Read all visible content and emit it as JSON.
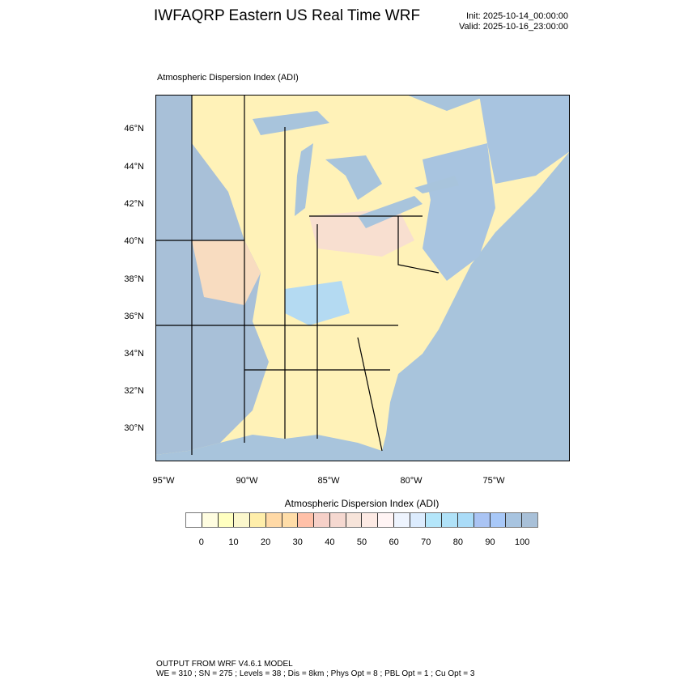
{
  "header": {
    "title": "IWFAQRP Eastern US Real Time WRF",
    "init": "Init: 2025-10-14_00:00:00",
    "valid": "Valid: 2025-10-16_23:00:00"
  },
  "map": {
    "subtitle": "Atmospheric Dispersion Index   (ADI)",
    "lat_labels": [
      "46°N",
      "44°N",
      "42°N",
      "40°N",
      "38°N",
      "36°N",
      "34°N",
      "32°N",
      "30°N"
    ],
    "lon_labels": [
      "95°W",
      "90°W",
      "85°W",
      "80°W",
      "75°W"
    ],
    "colors": {
      "ocean": "#a8c4dc",
      "great_lakes_region": "#fff4b8",
      "midwest_west": "#a8c0d8"
    }
  },
  "colorbar": {
    "title": "Atmospheric Dispersion Index  (ADI)",
    "labels": [
      "0",
      "10",
      "20",
      "30",
      "40",
      "50",
      "60",
      "70",
      "80",
      "90",
      "100"
    ],
    "colors": [
      "#ffffff",
      "#fffde0",
      "#ffffc0",
      "#fbf7cc",
      "#ffeeaa",
      "#ffd9a6",
      "#ffdda8",
      "#ffc0a8",
      "#f6d0c8",
      "#f5d8d0",
      "#f7e4da",
      "#fdeae4",
      "#fff4f4",
      "#eef4fe",
      "#dcecfe",
      "#b4e6fa",
      "#b0e2f8",
      "#aadcf8",
      "#aac4f4",
      "#a8c8f8",
      "#a8c4e0",
      "#a8c0d8"
    ]
  },
  "footer": {
    "line1": "OUTPUT FROM WRF V4.6.1 MODEL",
    "line2": "WE = 310 ; SN = 275 ; Levels = 38 ; Dis = 8km ; Phys Opt = 8 ; PBL Opt = 1 ; Cu Opt = 3"
  }
}
